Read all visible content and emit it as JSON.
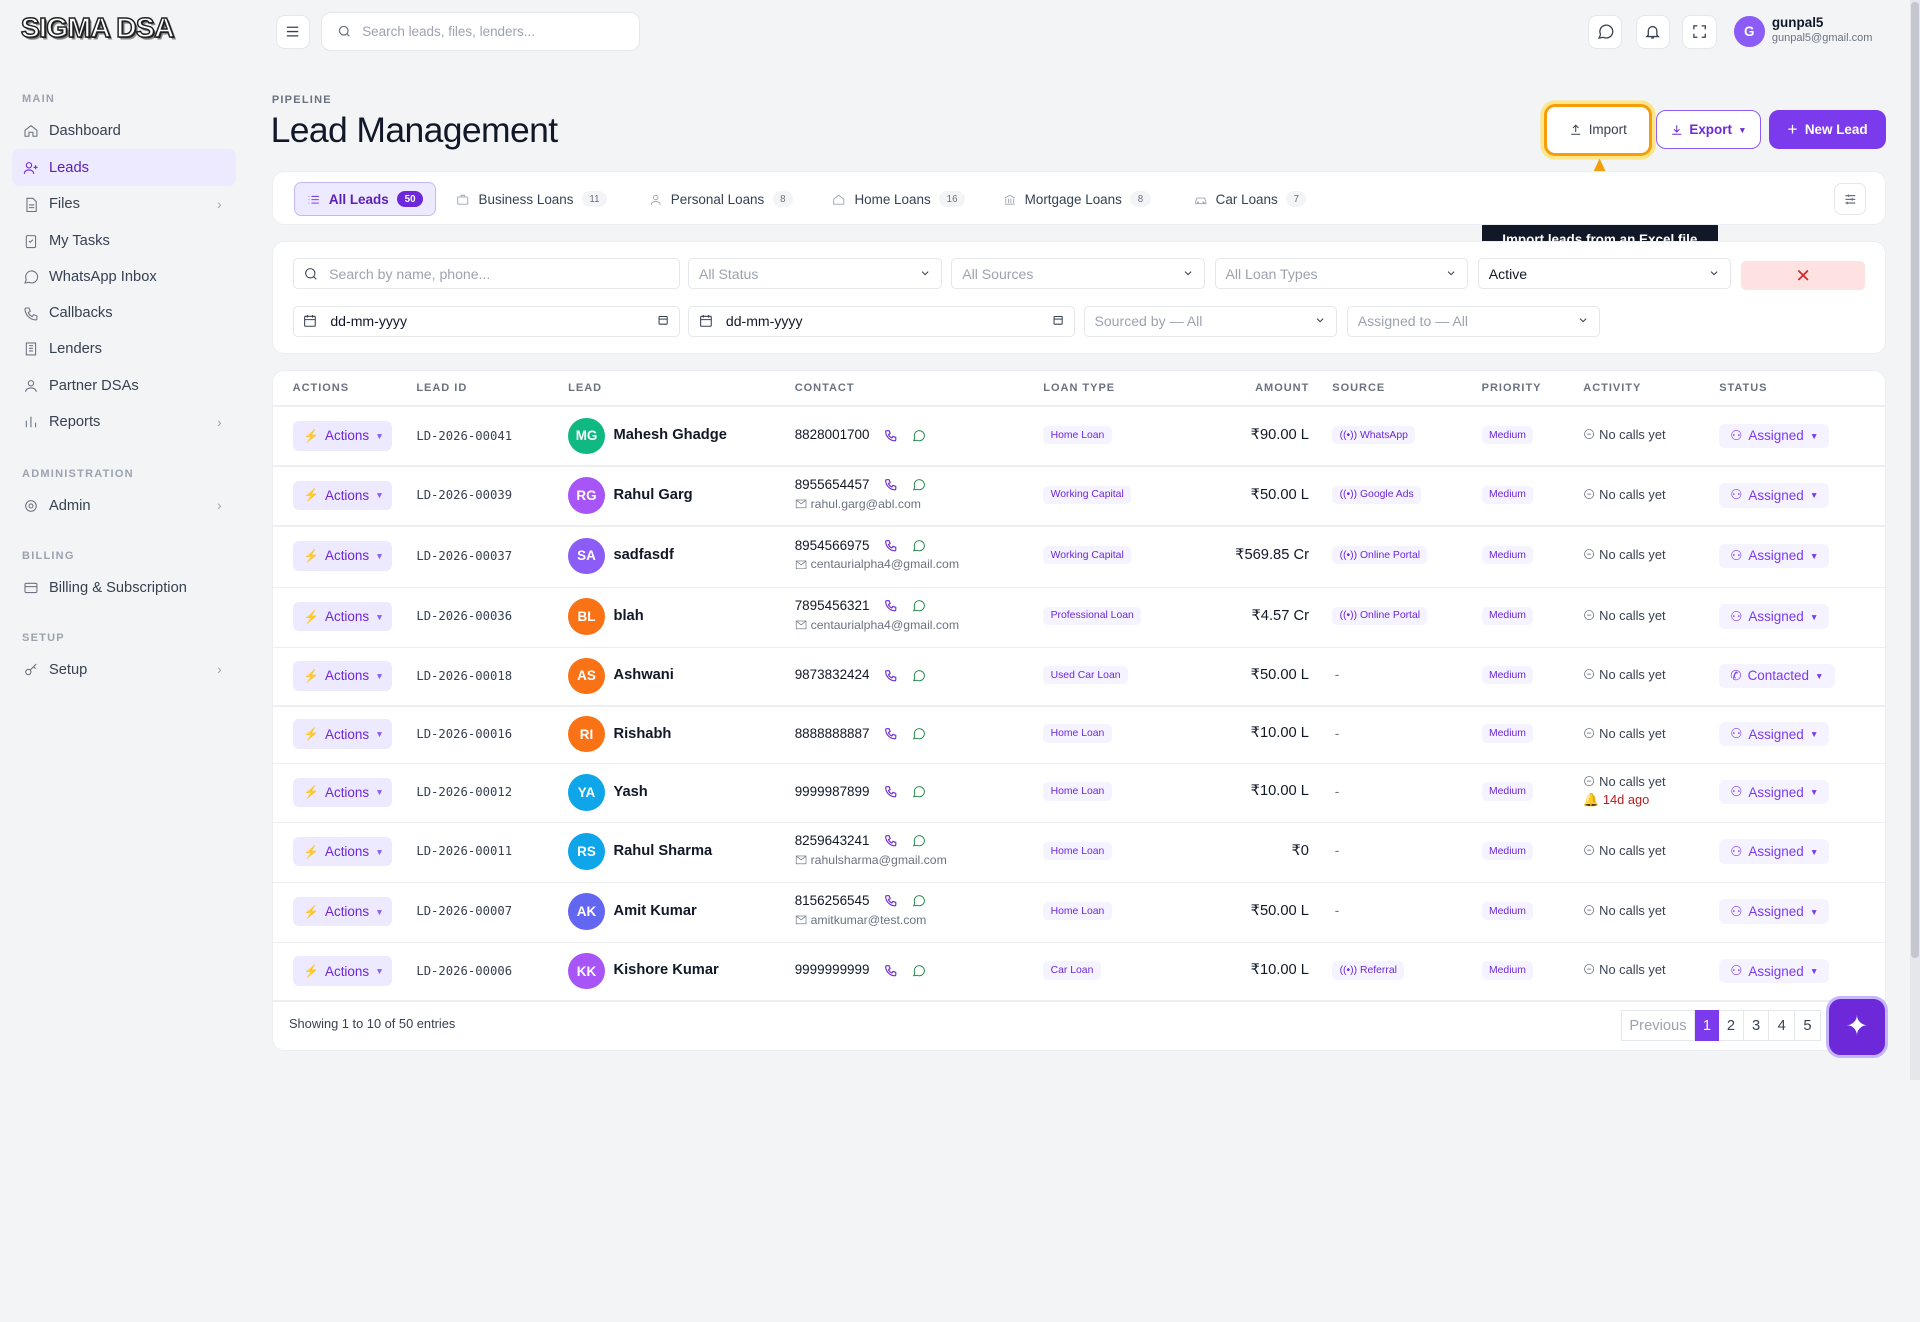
{
  "app": {
    "logo": "SIGMA DSA"
  },
  "topbar": {
    "search_placeholder": "Search leads, files, lenders...",
    "user_initial": "G",
    "user_name": "gunpal5",
    "user_email": "gunpal5@gmail.com"
  },
  "sidebar": {
    "sections": {
      "main": "MAIN",
      "administration": "ADMINISTRATION",
      "billing": "BILLING",
      "setup": "SETUP"
    },
    "items": [
      {
        "label": "Dashboard",
        "icon": "home-icon"
      },
      {
        "label": "Leads",
        "icon": "user-plus-icon"
      },
      {
        "label": "Files",
        "icon": "file-icon"
      },
      {
        "label": "My Tasks",
        "icon": "clipboard-icon"
      },
      {
        "label": "WhatsApp Inbox",
        "icon": "whatsapp-icon"
      },
      {
        "label": "Callbacks",
        "icon": "phone-icon"
      },
      {
        "label": "Lenders",
        "icon": "building-icon"
      },
      {
        "label": "Partner DSAs",
        "icon": "users-icon"
      },
      {
        "label": "Reports",
        "icon": "bar-chart-icon"
      },
      {
        "label": "Admin",
        "icon": "gear-icon"
      },
      {
        "label": "Billing & Subscription",
        "icon": "credit-card-icon"
      },
      {
        "label": "Setup",
        "icon": "key-icon"
      }
    ]
  },
  "page": {
    "breadcrumb": "PIPELINE",
    "title": "Lead Management",
    "import_label": "Import",
    "export_label": "Export",
    "new_lead_label": "New Lead",
    "tooltip": "Import leads from an Excel file",
    "accent": "#7c3aed",
    "highlight": "#f59e0b"
  },
  "tabs": [
    {
      "label": "All Leads",
      "count": "50"
    },
    {
      "label": "Business Loans",
      "count": "11"
    },
    {
      "label": "Personal Loans",
      "count": "8"
    },
    {
      "label": "Home Loans",
      "count": "16"
    },
    {
      "label": "Mortgage Loans",
      "count": "8"
    },
    {
      "label": "Car Loans",
      "count": "7"
    }
  ],
  "filters": {
    "search_placeholder": "Search by name, phone...",
    "status": "All Status",
    "sources": "All Sources",
    "loan_types": "All Loan Types",
    "active": "Active",
    "date_from": "dd-mm-yyyy",
    "date_to": "dd-mm-yyyy",
    "sourced_by": "Sourced by — All",
    "assigned_to": "Assigned to — All"
  },
  "table": {
    "headers": [
      "ACTIONS",
      "LEAD ID",
      "LEAD",
      "CONTACT",
      "LOAN TYPE",
      "AMOUNT",
      "SOURCE",
      "PRIORITY",
      "ACTIVITY",
      "STATUS"
    ],
    "actions_label": "Actions",
    "no_calls": "No calls yet",
    "rows": [
      {
        "id": "LD-2026-00041",
        "initials": "MG",
        "color": "#10b981",
        "name": "Mahesh Ghadge",
        "phone": "8828001700",
        "email": "",
        "loan": "Home Loan",
        "amount": "₹90.00 L",
        "source": "WhatsApp",
        "priority": "Medium",
        "activity_extra": "",
        "status": "Assigned"
      },
      {
        "id": "LD-2026-00039",
        "initials": "RG",
        "color": "#a855f7",
        "name": "Rahul Garg",
        "phone": "8955654457",
        "email": "rahul.garg@abl.com",
        "loan": "Working Capital",
        "amount": "₹50.00 L",
        "source": "Google Ads",
        "priority": "Medium",
        "activity_extra": "",
        "status": "Assigned"
      },
      {
        "id": "LD-2026-00037",
        "initials": "SA",
        "color": "#8b5cf6",
        "name": "sadfasdf",
        "phone": "8954566975",
        "email": "centaurialpha4@gmail.com",
        "loan": "Working Capital",
        "amount": "₹569.85 Cr",
        "source": "Online Portal",
        "priority": "Medium",
        "activity_extra": "",
        "status": "Assigned"
      },
      {
        "id": "LD-2026-00036",
        "initials": "BL",
        "color": "#f97316",
        "name": "blah",
        "phone": "7895456321",
        "email": "centaurialpha4@gmail.com",
        "loan": "Professional Loan",
        "amount": "₹4.57 Cr",
        "source": "Online Portal",
        "priority": "Medium",
        "activity_extra": "",
        "status": "Assigned"
      },
      {
        "id": "LD-2026-00018",
        "initials": "AS",
        "color": "#f97316",
        "name": "Ashwani",
        "phone": "9873832424",
        "email": "",
        "loan": "Used Car Loan",
        "amount": "₹50.00 L",
        "source": "",
        "priority": "Medium",
        "activity_extra": "",
        "status": "Contacted"
      },
      {
        "id": "LD-2026-00016",
        "initials": "RI",
        "color": "#f97316",
        "name": "Rishabh",
        "phone": "8888888887",
        "email": "",
        "loan": "Home Loan",
        "amount": "₹10.00 L",
        "source": "",
        "priority": "Medium",
        "activity_extra": "",
        "status": "Assigned"
      },
      {
        "id": "LD-2026-00012",
        "initials": "YA",
        "color": "#0ea5e9",
        "name": "Yash",
        "phone": "9999987899",
        "email": "",
        "loan": "Home Loan",
        "amount": "₹10.00 L",
        "source": "",
        "priority": "Medium",
        "activity_extra": "14d ago",
        "status": "Assigned"
      },
      {
        "id": "LD-2026-00011",
        "initials": "RS",
        "color": "#0ea5e9",
        "name": "Rahul Sharma",
        "phone": "8259643241",
        "email": "rahulsharma@gmail.com",
        "loan": "Home Loan",
        "amount": "₹0",
        "source": "",
        "priority": "Medium",
        "activity_extra": "",
        "status": "Assigned"
      },
      {
        "id": "LD-2026-00007",
        "initials": "AK",
        "color": "#6366f1",
        "name": "Amit Kumar",
        "phone": "8156256545",
        "email": "amitkumar@test.com",
        "loan": "Home Loan",
        "amount": "₹50.00 L",
        "source": "",
        "priority": "Medium",
        "activity_extra": "",
        "status": "Assigned"
      },
      {
        "id": "LD-2026-00006",
        "initials": "KK",
        "color": "#a855f7",
        "name": "Kishore Kumar",
        "phone": "9999999999",
        "email": "",
        "loan": "Car Loan",
        "amount": "₹10.00 L",
        "source": "Referral",
        "priority": "Medium",
        "activity_extra": "",
        "status": "Assigned"
      }
    ],
    "empty_dash": "-"
  },
  "footer": {
    "showing": "Showing 1 to 10 of 50 entries",
    "previous": "Previous",
    "pages": [
      "1",
      "2",
      "3",
      "4",
      "5"
    ]
  }
}
